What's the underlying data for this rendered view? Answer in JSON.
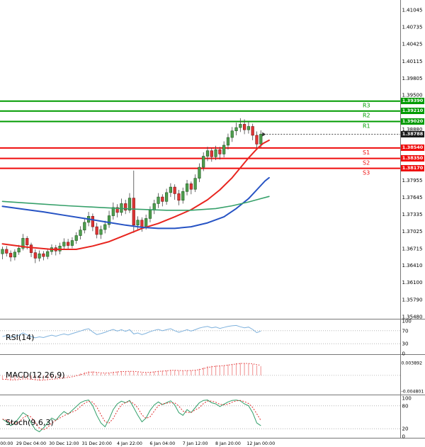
{
  "colors": {
    "background": "#ffffff",
    "up_candle": "#4f9e4f",
    "up_candle_border": "#1f5c1f",
    "down_candle": "#e03535",
    "down_candle_border": "#7a1515",
    "wick": "#444444",
    "ma_fast": "#e8251f",
    "ma_mid": "#2653c4",
    "ma_slow": "#36a06a",
    "resistance": "#009b00",
    "support": "#ef0d0d",
    "resistance_box_bg": "#009b00",
    "support_box_bg": "#ef0d0d",
    "price_box_bg": "#1c1c1c",
    "price_line": "#333333",
    "rsi_line": "#7fb2dd",
    "macd_hist": "#f2a0a0",
    "macd_signal": "#e03030",
    "stoch_k": "#2f9e68",
    "stoch_d": "#e03030",
    "grid": "#aaaaaa",
    "panel_border": "#777777",
    "axis_text": "#000000"
  },
  "y_axis": {
    "ticks": [
      "1.41045",
      "1.40735",
      "1.40425",
      "1.40115",
      "1.39805",
      "1.39500",
      "1.38880",
      "1.37955",
      "1.37645",
      "1.37335",
      "1.37025",
      "1.36715",
      "1.36410",
      "1.36100",
      "1.35790",
      "1.35480"
    ]
  },
  "x_axis": {
    "labels": [
      {
        "index": 1,
        "text": "00:00"
      },
      {
        "index": 7,
        "text": "29 Dec 04:00"
      },
      {
        "index": 15,
        "text": "30 Dec 12:00"
      },
      {
        "index": 23,
        "text": "31 Dec 20:00"
      },
      {
        "index": 31,
        "text": "4 Jan 22:00"
      },
      {
        "index": 39,
        "text": "6 Jan 04:00"
      },
      {
        "index": 47,
        "text": "7 Jan 12:00"
      },
      {
        "index": 55,
        "text": "8 Jan 20:00"
      },
      {
        "index": 63,
        "text": "12 Jan 00:00"
      }
    ]
  },
  "levels": {
    "resistances": [
      {
        "name": "R3",
        "value": "1.39390"
      },
      {
        "name": "R2",
        "value": "1.39210"
      },
      {
        "name": "R1",
        "value": "1.39020"
      }
    ],
    "supports": [
      {
        "name": "S1",
        "value": "1.38540"
      },
      {
        "name": "S2",
        "value": "1.38350"
      },
      {
        "name": "S3",
        "value": "1.38170"
      }
    ],
    "current_price": "1.38788"
  },
  "panels": {
    "rsi": {
      "label": "RSI(14)",
      "ticks": [
        {
          "v": 100,
          "text": "100"
        },
        {
          "v": 70,
          "text": "70"
        },
        {
          "v": 30,
          "text": "30"
        },
        {
          "v": 0,
          "text": "0"
        }
      ],
      "grid_levels": [
        70,
        30
      ],
      "ylim": [
        0,
        100
      ]
    },
    "macd": {
      "label": "MACD(12,26,9)",
      "ticks": [
        {
          "v": 0.003892,
          "text": "0.003892"
        },
        {
          "v": -0.004801,
          "text": "-0.004801"
        }
      ],
      "ylim": [
        -0.00565,
        0.00538
      ]
    },
    "stoch": {
      "label": "Stoch(9,6,3)",
      "ticks": [
        {
          "v": 100,
          "text": "100"
        },
        {
          "v": 80,
          "text": "80"
        },
        {
          "v": 20,
          "text": "20"
        },
        {
          "v": 0,
          "text": "0"
        }
      ],
      "grid_levels": [
        80,
        20
      ],
      "ylim": [
        0,
        100
      ]
    }
  },
  "chart_data": {
    "type": "candlestick",
    "timeframe": "4h",
    "ylim": [
      1.3544,
      1.41225
    ],
    "candles": [
      [
        1.3662,
        1.3675,
        1.3652,
        1.367
      ],
      [
        1.367,
        1.3676,
        1.3657,
        1.3663
      ],
      [
        1.3663,
        1.3668,
        1.3648,
        1.3656
      ],
      [
        1.3656,
        1.367,
        1.365,
        1.3665
      ],
      [
        1.3665,
        1.3678,
        1.366,
        1.3672
      ],
      [
        1.3672,
        1.3698,
        1.3668,
        1.369
      ],
      [
        1.369,
        1.3694,
        1.367,
        1.3678
      ],
      [
        1.3678,
        1.3682,
        1.3656,
        1.3664
      ],
      [
        1.3664,
        1.367,
        1.3645,
        1.3654
      ],
      [
        1.3654,
        1.3668,
        1.3648,
        1.3662
      ],
      [
        1.3662,
        1.3667,
        1.365,
        1.3657
      ],
      [
        1.3657,
        1.3672,
        1.3652,
        1.3666
      ],
      [
        1.3666,
        1.3679,
        1.366,
        1.3673
      ],
      [
        1.3673,
        1.3678,
        1.3659,
        1.3667
      ],
      [
        1.3667,
        1.3682,
        1.3661,
        1.3676
      ],
      [
        1.3676,
        1.369,
        1.367,
        1.3683
      ],
      [
        1.3683,
        1.3689,
        1.367,
        1.3677
      ],
      [
        1.3677,
        1.3692,
        1.3672,
        1.3686
      ],
      [
        1.3686,
        1.3701,
        1.368,
        1.3695
      ],
      [
        1.3695,
        1.3712,
        1.3688,
        1.3705
      ],
      [
        1.3705,
        1.3726,
        1.3699,
        1.3719
      ],
      [
        1.3719,
        1.3738,
        1.3712,
        1.373
      ],
      [
        1.373,
        1.3735,
        1.3703,
        1.3711
      ],
      [
        1.3711,
        1.3718,
        1.369,
        1.3697
      ],
      [
        1.3697,
        1.3713,
        1.3689,
        1.3706
      ],
      [
        1.3706,
        1.3722,
        1.3699,
        1.3715
      ],
      [
        1.3715,
        1.374,
        1.3709,
        1.3731
      ],
      [
        1.3731,
        1.3755,
        1.3724,
        1.3746
      ],
      [
        1.3746,
        1.3752,
        1.3728,
        1.3737
      ],
      [
        1.3737,
        1.3762,
        1.3731,
        1.3753
      ],
      [
        1.3753,
        1.376,
        1.3734,
        1.3741
      ],
      [
        1.3741,
        1.3772,
        1.3736,
        1.3763
      ],
      [
        1.3763,
        1.3813,
        1.37,
        1.3714
      ],
      [
        1.3714,
        1.373,
        1.3704,
        1.3723
      ],
      [
        1.3723,
        1.3728,
        1.3702,
        1.371
      ],
      [
        1.371,
        1.3733,
        1.3706,
        1.3726
      ],
      [
        1.3726,
        1.3748,
        1.3719,
        1.3741
      ],
      [
        1.3741,
        1.376,
        1.3734,
        1.3753
      ],
      [
        1.3753,
        1.3772,
        1.3745,
        1.3765
      ],
      [
        1.3765,
        1.377,
        1.3748,
        1.3757
      ],
      [
        1.3757,
        1.378,
        1.3751,
        1.3773
      ],
      [
        1.3773,
        1.379,
        1.3765,
        1.3783
      ],
      [
        1.3783,
        1.3788,
        1.376,
        1.3771
      ],
      [
        1.3771,
        1.3778,
        1.375,
        1.3759
      ],
      [
        1.3759,
        1.3782,
        1.3753,
        1.3775
      ],
      [
        1.3775,
        1.3796,
        1.3768,
        1.3789
      ],
      [
        1.3789,
        1.3793,
        1.377,
        1.3779
      ],
      [
        1.3779,
        1.3806,
        1.3774,
        1.3799
      ],
      [
        1.3799,
        1.3826,
        1.3792,
        1.3819
      ],
      [
        1.3819,
        1.3846,
        1.3812,
        1.3839
      ],
      [
        1.3839,
        1.3856,
        1.383,
        1.3849
      ],
      [
        1.3849,
        1.3854,
        1.3829,
        1.3838
      ],
      [
        1.3838,
        1.3858,
        1.3832,
        1.3851
      ],
      [
        1.3851,
        1.3856,
        1.3833,
        1.3843
      ],
      [
        1.3843,
        1.3866,
        1.3837,
        1.3859
      ],
      [
        1.3859,
        1.388,
        1.3851,
        1.3873
      ],
      [
        1.3873,
        1.3892,
        1.3865,
        1.3885
      ],
      [
        1.3885,
        1.39,
        1.3877,
        1.3891
      ],
      [
        1.3891,
        1.3908,
        1.3883,
        1.3897
      ],
      [
        1.3897,
        1.3906,
        1.3879,
        1.3887
      ],
      [
        1.3887,
        1.3902,
        1.388,
        1.3893
      ],
      [
        1.3893,
        1.3898,
        1.3868,
        1.3877
      ],
      [
        1.3877,
        1.3884,
        1.3852,
        1.3861
      ],
      [
        1.3861,
        1.3886,
        1.3855,
        1.3879
      ]
    ],
    "moving_averages": [
      {
        "name": "ma-fast-red",
        "color_key": "ma_fast",
        "width": 2,
        "points": [
          [
            0,
            1.368
          ],
          [
            6,
            1.3674
          ],
          [
            12,
            1.367
          ],
          [
            18,
            1.367
          ],
          [
            22,
            1.3676
          ],
          [
            26,
            1.3684
          ],
          [
            30,
            1.3696
          ],
          [
            34,
            1.3708
          ],
          [
            38,
            1.3717
          ],
          [
            42,
            1.3729
          ],
          [
            46,
            1.3742
          ],
          [
            50,
            1.376
          ],
          [
            53,
            1.3778
          ],
          [
            56,
            1.38
          ],
          [
            58,
            1.3818
          ],
          [
            60,
            1.3836
          ],
          [
            62,
            1.3852
          ],
          [
            63.5,
            1.3862
          ],
          [
            65,
            1.3868
          ]
        ]
      },
      {
        "name": "ma-mid-blue",
        "color_key": "ma_mid",
        "width": 2,
        "points": [
          [
            0,
            1.3748
          ],
          [
            5,
            1.3743
          ],
          [
            10,
            1.3738
          ],
          [
            15,
            1.3732
          ],
          [
            20,
            1.3726
          ],
          [
            25,
            1.372
          ],
          [
            30,
            1.3714
          ],
          [
            34,
            1.371
          ],
          [
            38,
            1.3708
          ],
          [
            42,
            1.3708
          ],
          [
            46,
            1.3711
          ],
          [
            50,
            1.3718
          ],
          [
            54,
            1.3729
          ],
          [
            57,
            1.3744
          ],
          [
            60,
            1.3762
          ],
          [
            62,
            1.3778
          ],
          [
            64,
            1.3794
          ],
          [
            65,
            1.38
          ]
        ]
      },
      {
        "name": "ma-slow-green",
        "color_key": "ma_slow",
        "width": 1.6,
        "points": [
          [
            0,
            1.3757
          ],
          [
            8,
            1.3753
          ],
          [
            16,
            1.3749
          ],
          [
            24,
            1.3746
          ],
          [
            32,
            1.3743
          ],
          [
            40,
            1.3741
          ],
          [
            46,
            1.3741
          ],
          [
            52,
            1.3744
          ],
          [
            56,
            1.3749
          ],
          [
            60,
            1.3756
          ],
          [
            63,
            1.3762
          ],
          [
            65,
            1.3766
          ]
        ]
      }
    ],
    "rsi": [
      52,
      55,
      49,
      53,
      56,
      63,
      57,
      52,
      48,
      51,
      49,
      53,
      56,
      53,
      57,
      60,
      57,
      61,
      65,
      69,
      73,
      76,
      66,
      58,
      61,
      65,
      70,
      74,
      69,
      73,
      68,
      73,
      60,
      63,
      58,
      62,
      67,
      71,
      74,
      70,
      73,
      76,
      70,
      65,
      69,
      73,
      69,
      73,
      78,
      81,
      83,
      79,
      81,
      77,
      80,
      83,
      85,
      86,
      82,
      79,
      81,
      74,
      64,
      69
    ],
    "macd_line": [
      -0.0012,
      -0.0013,
      -0.0015,
      -0.0014,
      -0.0012,
      -0.0009,
      -0.001,
      -0.0013,
      -0.0015,
      -0.0016,
      -0.0014,
      -0.0012,
      -0.001,
      -0.001,
      -0.0008,
      -0.0005,
      -0.0005,
      -0.0002,
      0.0002,
      0.0006,
      0.001,
      0.0013,
      0.0012,
      0.0008,
      0.0006,
      0.0006,
      0.0008,
      0.0011,
      0.0012,
      0.0013,
      0.0012,
      0.0013,
      0.0012,
      0.001,
      0.0008,
      0.0008,
      0.001,
      0.0012,
      0.0014,
      0.0014,
      0.0015,
      0.0017,
      0.0016,
      0.0014,
      0.0014,
      0.0015,
      0.0015,
      0.0017,
      0.002,
      0.0024,
      0.0028,
      0.0029,
      0.003,
      0.003,
      0.0031,
      0.0033,
      0.0035,
      0.0037,
      0.0038,
      0.0037,
      0.0036,
      0.0034,
      0.003,
      0.0028
    ],
    "stoch_k": [
      45,
      38,
      28,
      35,
      48,
      62,
      55,
      35,
      18,
      12,
      22,
      35,
      48,
      42,
      55,
      65,
      58,
      68,
      78,
      88,
      93,
      95,
      80,
      55,
      35,
      25,
      45,
      70,
      85,
      92,
      88,
      94,
      75,
      55,
      38,
      48,
      68,
      82,
      90,
      83,
      88,
      93,
      82,
      62,
      55,
      70,
      62,
      75,
      88,
      94,
      95,
      88,
      85,
      78,
      84,
      90,
      94,
      95,
      93,
      85,
      80,
      62,
      35,
      28
    ]
  }
}
